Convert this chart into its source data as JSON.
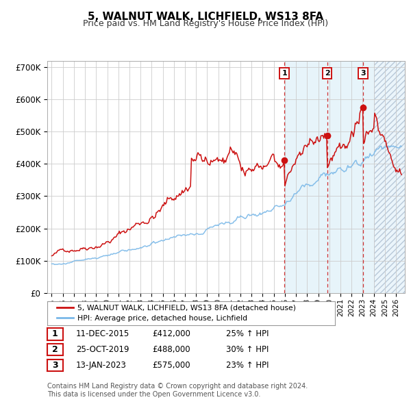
{
  "title": "5, WALNUT WALK, LICHFIELD, WS13 8FA",
  "subtitle": "Price paid vs. HM Land Registry's House Price Index (HPI)",
  "title_fontsize": 11,
  "subtitle_fontsize": 9,
  "ylim": [
    0,
    720000
  ],
  "yticks": [
    0,
    100000,
    200000,
    300000,
    400000,
    500000,
    600000,
    700000
  ],
  "ytick_labels": [
    "£0",
    "£100K",
    "£200K",
    "£300K",
    "£400K",
    "£500K",
    "£600K",
    "£700K"
  ],
  "xlim_start": 1994.6,
  "xlim_end": 2026.8,
  "hpi_color": "#7ab8e8",
  "price_color": "#cc1111",
  "background_color": "#ffffff",
  "grid_color": "#cccccc",
  "sale_dates": [
    2015.95,
    2019.82,
    2023.04
  ],
  "sale_prices": [
    412000,
    488000,
    575000
  ],
  "sale_labels": [
    "1",
    "2",
    "3"
  ],
  "shade_start": 2015.95,
  "shade_end": 2024.0,
  "hatch_start": 2024.0,
  "hatch_end": 2026.8,
  "legend_label_price": "5, WALNUT WALK, LICHFIELD, WS13 8FA (detached house)",
  "legend_label_hpi": "HPI: Average price, detached house, Lichfield",
  "table_rows": [
    {
      "num": "1",
      "date": "11-DEC-2015",
      "price": "£412,000",
      "pct": "25% ↑ HPI"
    },
    {
      "num": "2",
      "date": "25-OCT-2019",
      "price": "£488,000",
      "pct": "30% ↑ HPI"
    },
    {
      "num": "3",
      "date": "13-JAN-2023",
      "price": "£575,000",
      "pct": "23% ↑ HPI"
    }
  ],
  "footnote": "Contains HM Land Registry data © Crown copyright and database right 2024.\nThis data is licensed under the Open Government Licence v3.0."
}
